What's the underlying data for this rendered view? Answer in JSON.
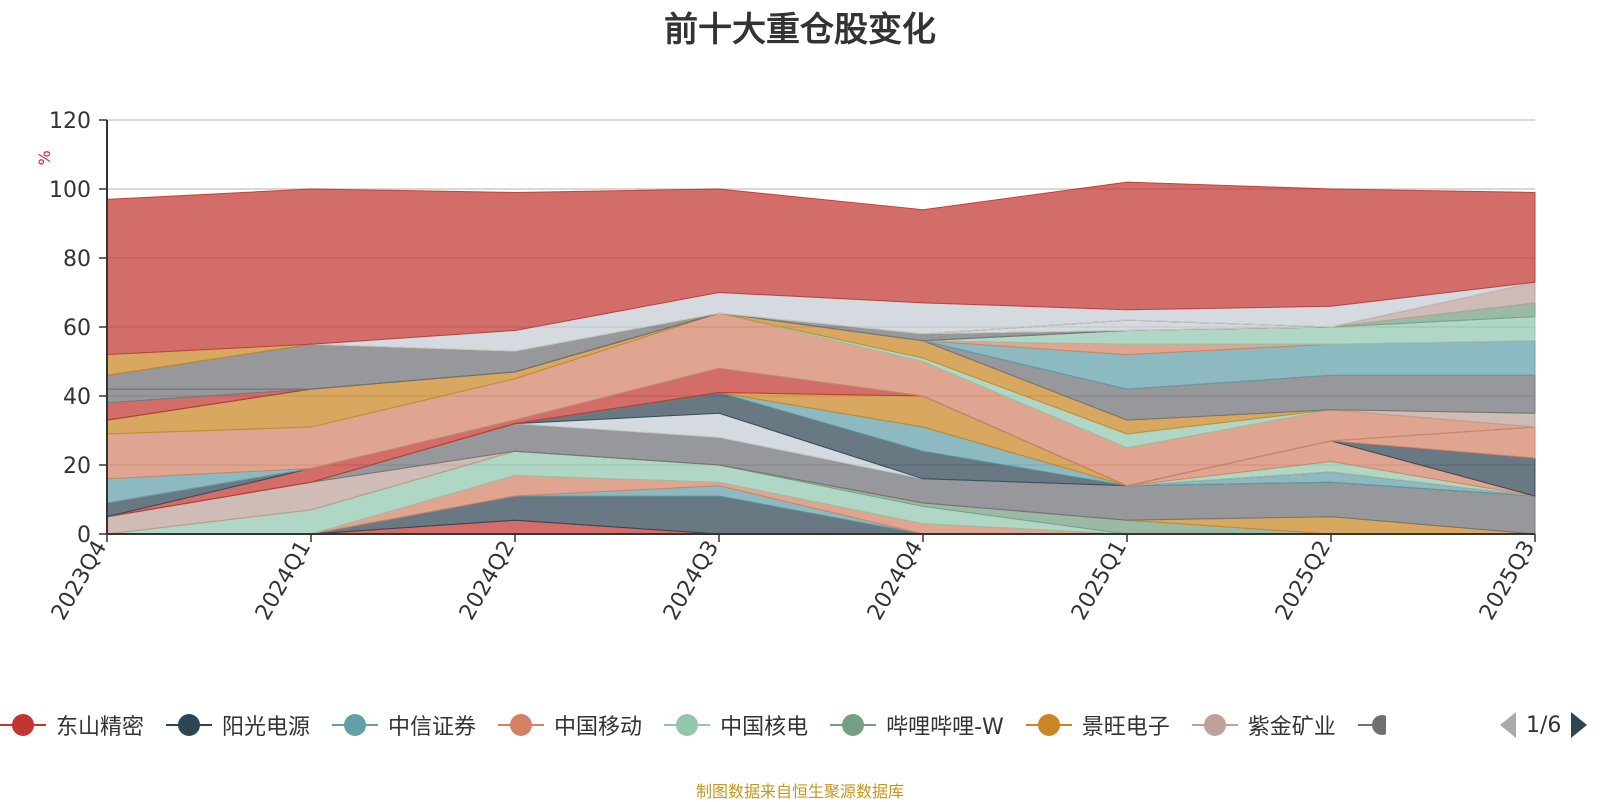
{
  "chart_data": {
    "type": "area",
    "title": "前十大重仓股变化",
    "ylabel": "%",
    "xlabel": "",
    "ylim": [
      0,
      120
    ],
    "yticks": [
      0,
      20,
      40,
      60,
      80,
      100,
      120
    ],
    "grid": true,
    "legend_position": "bottom",
    "x": [
      "2023Q4",
      "2024Q1",
      "2024Q2",
      "2024Q3",
      "2024Q4",
      "2025Q1",
      "2025Q2",
      "2025Q3"
    ],
    "series": [
      {
        "name": "东山精密",
        "color": "#c23531",
        "values": [
          0,
          0,
          4,
          0,
          0,
          0,
          0,
          0
        ]
      },
      {
        "name": "阳光电源",
        "color": "#2f4554",
        "values": [
          0,
          0,
          7,
          11,
          0,
          0,
          0,
          0
        ]
      },
      {
        "name": "中信证券",
        "color": "#61a0a8",
        "values": [
          0,
          0,
          0,
          3,
          0,
          0,
          0,
          0
        ]
      },
      {
        "name": "中国移动",
        "color": "#d48265",
        "values": [
          0,
          0,
          6,
          1,
          3,
          0,
          0,
          0
        ]
      },
      {
        "name": "中国核电",
        "color": "#91c7ae",
        "values": [
          0,
          7,
          7,
          5,
          5,
          0,
          0,
          0
        ]
      },
      {
        "name": "哔哩哔哩-W",
        "color": "#749f83",
        "values": [
          0,
          0,
          0,
          0,
          1,
          4,
          0,
          0
        ]
      },
      {
        "name": "景旺电子",
        "color": "#ca8622",
        "values": [
          0,
          0,
          0,
          0,
          0,
          0,
          5,
          0
        ]
      },
      {
        "name": "紫金矿业",
        "color": "#bda29a",
        "values": [
          5,
          8,
          0,
          0,
          0,
          0,
          0,
          0
        ]
      },
      {
        "name": "",
        "color": "#6e7074",
        "values": [
          0,
          0,
          8,
          8,
          7,
          10,
          10,
          11
        ]
      },
      {
        "name": "",
        "color": "#c4ccd3",
        "values": [
          0,
          0,
          0,
          7,
          0,
          0,
          0,
          0
        ]
      },
      {
        "name": "",
        "color": "#2f4554",
        "values": [
          0,
          0,
          0,
          6,
          8,
          0,
          0,
          0
        ]
      },
      {
        "name": "",
        "color": "#61a0a8",
        "values": [
          0,
          0,
          0,
          0,
          7,
          0,
          3,
          0
        ]
      },
      {
        "name": "",
        "color": "#ca8622",
        "values": [
          0,
          0,
          0,
          0,
          9,
          0,
          0,
          0
        ]
      },
      {
        "name": "",
        "color": "#c23531",
        "values": [
          0,
          4,
          1,
          7,
          0,
          0,
          0,
          0
        ]
      },
      {
        "name": "",
        "color": "#bda29a",
        "values": [
          0,
          0,
          0,
          0,
          0,
          0,
          0,
          0
        ]
      },
      {
        "name": "",
        "color": "#91c7ae",
        "values": [
          0,
          0,
          0,
          0,
          0,
          0,
          3,
          0
        ]
      },
      {
        "name": "",
        "color": "#d48265",
        "values": [
          0,
          0,
          0,
          0,
          0,
          0,
          6,
          0
        ]
      },
      {
        "name": "",
        "color": "#2f4554",
        "values": [
          4,
          0,
          0,
          0,
          0,
          0,
          0,
          11
        ]
      },
      {
        "name": "",
        "color": "#bda29a",
        "values": [
          0,
          0,
          0,
          0,
          0,
          0,
          0,
          0
        ]
      },
      {
        "name": "",
        "color": "#d48265",
        "values": [
          0,
          0,
          0,
          0,
          0,
          0,
          0,
          9
        ]
      },
      {
        "name": "",
        "color": "#749f83",
        "values": [
          0,
          0,
          0,
          0,
          0,
          0,
          0,
          0
        ]
      },
      {
        "name": "",
        "color": "#61a0a8",
        "values": [
          7,
          0,
          0,
          0,
          0,
          0,
          0,
          0
        ]
      },
      {
        "name": "",
        "color": "#d48265",
        "values": [
          13,
          12,
          12,
          16,
          10,
          11,
          9,
          0
        ]
      },
      {
        "name": "",
        "color": "#91c7ae",
        "values": [
          0,
          0,
          0,
          0,
          1,
          4,
          0,
          0
        ]
      },
      {
        "name": "",
        "color": "#ca8622",
        "values": [
          4,
          11,
          2,
          0,
          5,
          4,
          0,
          0
        ]
      },
      {
        "name": "",
        "color": "#bda29a",
        "values": [
          0,
          0,
          0,
          0,
          0,
          0,
          0,
          4
        ]
      },
      {
        "name": "",
        "color": "#6e7074",
        "values": [
          0,
          0,
          0,
          0,
          0,
          9,
          10,
          11
        ]
      },
      {
        "name": "",
        "color": "#61a0a8",
        "values": [
          0,
          0,
          0,
          0,
          0,
          10,
          9,
          10
        ]
      },
      {
        "name": "",
        "color": "#d48265",
        "values": [
          0,
          0,
          0,
          0,
          0,
          3,
          0,
          0
        ]
      },
      {
        "name": "",
        "color": "#91c7ae",
        "values": [
          0,
          0,
          0,
          0,
          0,
          4,
          5,
          7
        ]
      },
      {
        "name": "",
        "color": "#749f83",
        "values": [
          0,
          0,
          0,
          0,
          0,
          0,
          0,
          4
        ]
      },
      {
        "name": "",
        "color": "#bda29a",
        "values": [
          0,
          0,
          0,
          0,
          0,
          0,
          0,
          6
        ]
      },
      {
        "name": "",
        "color": "#c4ccd3",
        "values": [
          0,
          0,
          0,
          0,
          0,
          0,
          0,
          0
        ]
      },
      {
        "name": "",
        "color": "#6e7074",
        "values": [
          0,
          0,
          0,
          0,
          2,
          0,
          0,
          0
        ]
      },
      {
        "name": "",
        "color": "#c23531",
        "values": [
          5,
          0,
          0,
          0,
          0,
          0,
          0,
          0
        ]
      },
      {
        "name": "",
        "color": "#c4ccd3",
        "values": [
          0,
          0,
          0,
          0,
          0,
          3,
          0,
          0
        ]
      },
      {
        "name": "",
        "color": "#91c7ae",
        "values": [
          0,
          0,
          0,
          0,
          0,
          0,
          0,
          0
        ]
      },
      {
        "name": "",
        "color": "#6e7074",
        "values": [
          4,
          0,
          0,
          0,
          0,
          0,
          0,
          0
        ]
      },
      {
        "name": "",
        "color": "#6e7074",
        "values": [
          4,
          13,
          6,
          0,
          0,
          0,
          0,
          0
        ]
      },
      {
        "name": "",
        "color": "#c4ccd3",
        "values": [
          0,
          0,
          0,
          0,
          0,
          0,
          0,
          0
        ]
      },
      {
        "name": "",
        "color": "#91c7ae",
        "values": [
          0,
          0,
          0,
          0,
          0,
          0,
          0,
          0
        ]
      },
      {
        "name": "",
        "color": "#749f83",
        "values": [
          0,
          0,
          0,
          0,
          0,
          0,
          0,
          0
        ]
      },
      {
        "name": "",
        "color": "#ca8622",
        "values": [
          6,
          0,
          0,
          0,
          0,
          0,
          0,
          0
        ]
      },
      {
        "name": "",
        "color": "#c4ccd3",
        "values": [
          0,
          0,
          6,
          6,
          9,
          3,
          6,
          0
        ]
      },
      {
        "name": "",
        "color": "#c23531",
        "values": [
          45,
          45,
          40,
          30,
          27,
          37,
          34,
          26
        ]
      }
    ]
  },
  "legend": {
    "items": [
      {
        "name": "东山精密",
        "color": "#c23531"
      },
      {
        "name": "阳光电源",
        "color": "#2f4554"
      },
      {
        "name": "中信证券",
        "color": "#61a0a8"
      },
      {
        "name": "中国移动",
        "color": "#d48265"
      },
      {
        "name": "中国核电",
        "color": "#91c7ae"
      },
      {
        "name": "哔哩哔哩-W",
        "color": "#749f83"
      },
      {
        "name": "景旺电子",
        "color": "#ca8622"
      },
      {
        "name": "紫金矿业",
        "color": "#bda29a"
      }
    ],
    "truncated_color": "#6e7074",
    "page_info": "1/6",
    "prev_icon": "triangle-left-icon",
    "next_icon": "triangle-right-icon"
  },
  "source_note": "制图数据来自恒生聚源数据库"
}
